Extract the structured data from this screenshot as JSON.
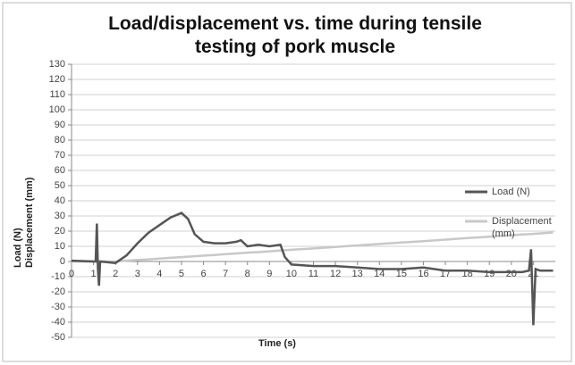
{
  "chart_data": {
    "type": "line",
    "title": "Load/displacement vs. time during tensile testing of pork muscle",
    "xlabel": "Time (s)",
    "ylabel": [
      "Load (N)",
      "Displacement (mm)"
    ],
    "x": [
      0,
      1,
      1.1,
      1.15,
      1.2,
      1.25,
      1.3,
      2,
      2.5,
      3,
      3.5,
      4,
      4.5,
      5,
      5.3,
      5.6,
      6,
      6.5,
      7,
      7.5,
      7.7,
      8,
      8.5,
      9,
      9.5,
      9.7,
      10,
      11,
      12,
      13,
      14,
      15,
      16,
      17,
      18,
      19,
      20,
      20.5,
      20.8,
      20.9,
      21,
      21.1,
      21.3,
      21.9
    ],
    "series": [
      {
        "name": "Load (N)",
        "color": "#555555",
        "values": [
          0.5,
          0,
          0,
          25,
          -5,
          -16,
          0,
          -1,
          4,
          12,
          19,
          24,
          29,
          32,
          28,
          18,
          13,
          12,
          12,
          13,
          14,
          10,
          11,
          10,
          11,
          3,
          -2,
          -3,
          -3,
          -4,
          -5,
          -5,
          -4,
          -6,
          -6,
          -7,
          -7,
          -7,
          -6,
          8,
          -42,
          -5,
          -6,
          -6
        ]
      },
      {
        "name": "Displacement (mm)",
        "color": "#c8c8c8",
        "values": [
          0,
          0,
          0,
          0,
          0,
          0,
          0,
          0,
          0.5,
          1,
          1.4,
          1.9,
          2.4,
          2.9,
          3.2,
          3.5,
          3.8,
          4.3,
          4.8,
          5.3,
          5.5,
          5.8,
          6.2,
          6.7,
          7.2,
          7.4,
          7.7,
          8.6,
          9.6,
          10.6,
          11.5,
          12.5,
          13.4,
          14.4,
          15.4,
          16.3,
          17.3,
          17.8,
          18.0,
          18.1,
          18.2,
          18.3,
          18.5,
          19.1
        ]
      }
    ],
    "xlim": [
      0,
      22
    ],
    "xticks": [
      0,
      1,
      2,
      3,
      4,
      5,
      6,
      7,
      8,
      9,
      10,
      11,
      12,
      13,
      14,
      15,
      16,
      17,
      18,
      19,
      20,
      21
    ],
    "ylim": [
      -50,
      130
    ],
    "yticks": [
      -50,
      -40,
      -30,
      -20,
      -10,
      0,
      10,
      20,
      30,
      40,
      50,
      60,
      70,
      80,
      90,
      100,
      110,
      120,
      130
    ],
    "grid": true,
    "legend": "right"
  }
}
